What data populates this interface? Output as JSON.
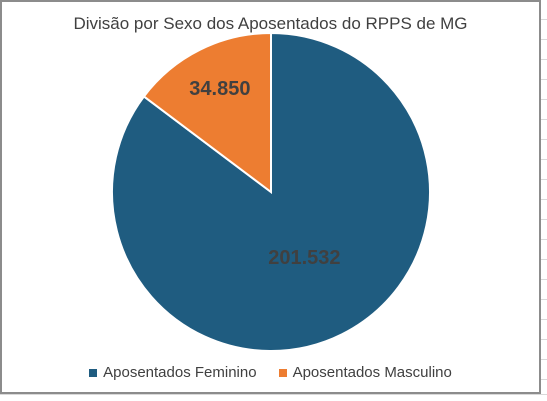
{
  "chart_data": {
    "type": "pie",
    "title": "Divisão por Sexo dos Aposentados do RPPS de MG",
    "categories": [
      "Aposentados Feminino",
      "Aposentados Masculino"
    ],
    "values": [
      201532,
      34850
    ],
    "value_labels": [
      "201.532",
      "34.850"
    ],
    "colors": [
      "#1f5c80",
      "#ed7d31"
    ],
    "legend_position": "bottom"
  }
}
